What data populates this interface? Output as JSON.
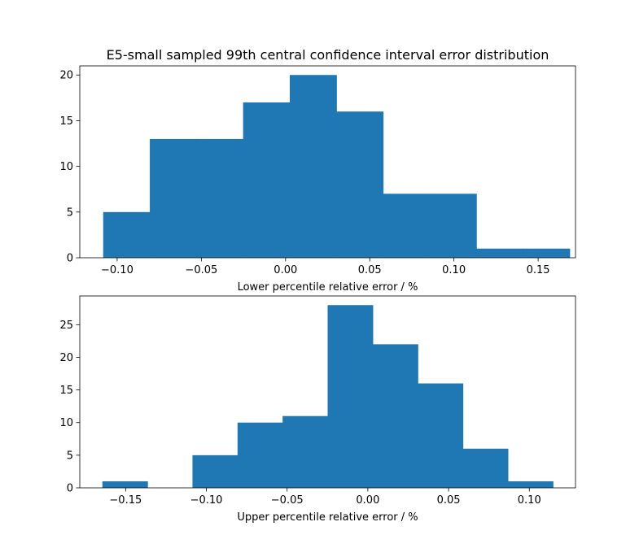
{
  "chart_data": [
    {
      "type": "bar",
      "title": "E5-small sampled 99th central confidence interval error distribution",
      "xlabel": "Lower percentile relative error / %",
      "ylabel": "",
      "bin_edges": [
        -0.1083,
        -0.0806,
        -0.0529,
        -0.0252,
        0.0025,
        0.0302,
        0.0579,
        0.0856,
        0.1133,
        0.141,
        0.1687
      ],
      "values": [
        5,
        13,
        13,
        17,
        20,
        16,
        7,
        7,
        1,
        1
      ],
      "xlim": [
        -0.1222,
        0.1722
      ],
      "ylim": [
        0,
        21
      ],
      "xticks": [
        -0.1,
        -0.05,
        0.0,
        0.05,
        0.1,
        0.15
      ],
      "xtick_labels": [
        "−0.10",
        "−0.05",
        "0.00",
        "0.05",
        "0.10",
        "0.15"
      ],
      "yticks": [
        0,
        5,
        10,
        15,
        20
      ],
      "ytick_labels": [
        "0",
        "5",
        "10",
        "15",
        "20"
      ],
      "grid": false,
      "color": "#1f77b4"
    },
    {
      "type": "bar",
      "title": "",
      "xlabel": "Upper percentile relative error / %",
      "ylabel": "",
      "bin_edges": [
        -0.1644,
        -0.1365,
        -0.1086,
        -0.0807,
        -0.0528,
        -0.0249,
        0.003,
        0.0309,
        0.0588,
        0.0867,
        0.1146
      ],
      "values": [
        1,
        0,
        5,
        10,
        11,
        28,
        22,
        16,
        6,
        1
      ],
      "xlim": [
        -0.1784,
        0.1286
      ],
      "ylim": [
        0,
        29.4
      ],
      "xticks": [
        -0.15,
        -0.1,
        -0.05,
        0.0,
        0.05,
        0.1
      ],
      "xtick_labels": [
        "−0.15",
        "−0.10",
        "−0.05",
        "0.00",
        "0.05",
        "0.10"
      ],
      "yticks": [
        0,
        5,
        10,
        15,
        20,
        25
      ],
      "ytick_labels": [
        "0",
        "5",
        "10",
        "15",
        "20",
        "25"
      ],
      "grid": false,
      "color": "#1f77b4"
    }
  ]
}
